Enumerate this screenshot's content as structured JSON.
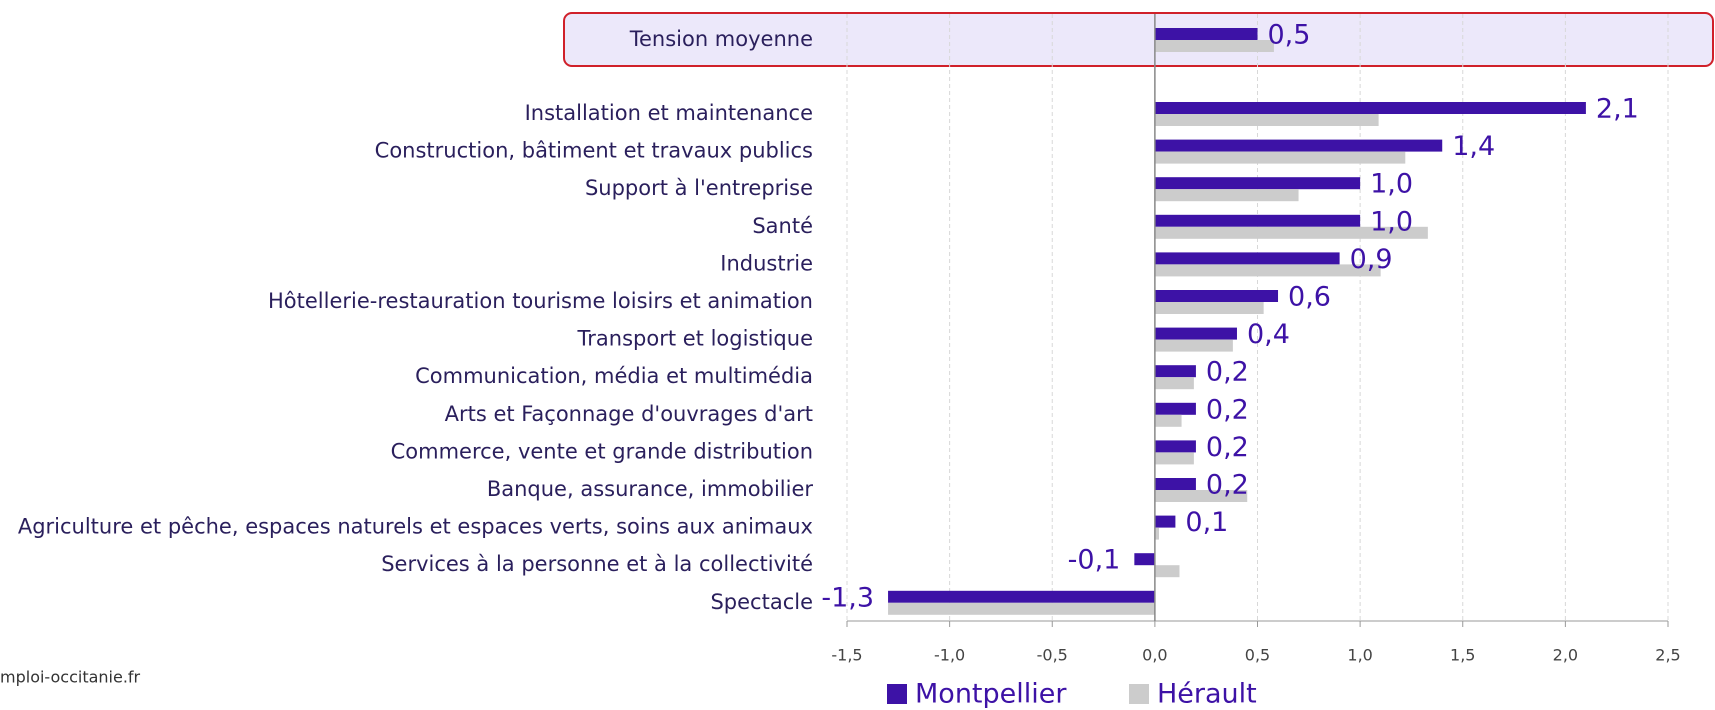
{
  "chart_data": {
    "type": "barh",
    "categories": [
      "Tension moyenne",
      "Installation et maintenance",
      "Construction, bâtiment et travaux publics",
      "Support à l'entreprise",
      "Santé",
      "Industrie",
      "Hôtellerie-restauration tourisme loisirs et animation",
      "Transport et logistique",
      "Communication, média et multimédia",
      "Arts et Façonnage d'ouvrages d'art",
      "Commerce, vente et grande distribution",
      "Banque, assurance, immobilier",
      "Agriculture et pêche, espaces naturels et espaces verts, soins aux animaux",
      "Services à la personne et à la collectivité",
      "Spectacle"
    ],
    "series": [
      {
        "name": "Montpellier",
        "color": "#3d12a6",
        "values": [
          0.5,
          2.1,
          1.4,
          1.0,
          1.0,
          0.9,
          0.6,
          0.4,
          0.2,
          0.2,
          0.2,
          0.2,
          0.1,
          -0.1,
          -1.3
        ],
        "value_labels": [
          "0,5",
          "2,1",
          "1,4",
          "1,0",
          "1,0",
          "0,9",
          "0,6",
          "0,4",
          "0,2",
          "0,2",
          "0,2",
          "0,2",
          "0,1",
          "-0,1",
          "-1,3"
        ]
      },
      {
        "name": "Hérault",
        "color": "#cccccc",
        "values": [
          0.58,
          1.09,
          1.22,
          0.7,
          1.33,
          1.1,
          0.53,
          0.38,
          0.19,
          0.13,
          0.19,
          0.45,
          0.02,
          0.12,
          -1.3
        ]
      }
    ],
    "xlim": [
      -1.5,
      2.5
    ],
    "xticks": [
      {
        "value": -1.5,
        "label": "-1,5"
      },
      {
        "value": -1.0,
        "label": "-1,0"
      },
      {
        "value": -0.5,
        "label": "-0,5"
      },
      {
        "value": 0,
        "label": "0,0"
      },
      {
        "value": 0.5,
        "label": "0,5"
      },
      {
        "value": 1.0,
        "label": "1,0"
      },
      {
        "value": 1.5,
        "label": "1,5"
      },
      {
        "value": 2.0,
        "label": "2,0"
      },
      {
        "value": 2.5,
        "label": "2,5"
      }
    ],
    "grid": true,
    "legend": "bottom",
    "source": "mploi-occitanie.fr"
  }
}
